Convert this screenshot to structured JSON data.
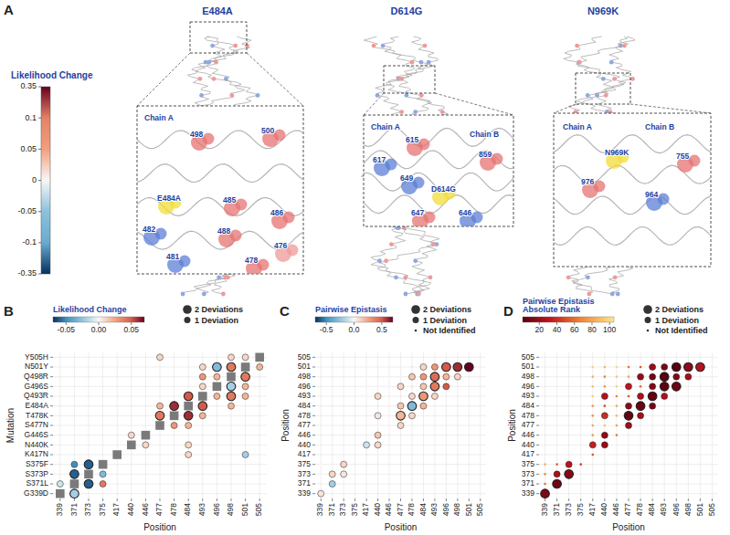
{
  "chart_data": [
    {
      "panel": "A",
      "type": "structure",
      "structures": [
        {
          "title": "E484A",
          "labels": [
            "Chain A",
            "498",
            "500",
            "E484A",
            "485",
            "486",
            "482",
            "481",
            "488",
            "478",
            "476"
          ]
        },
        {
          "title": "D614G",
          "labels": [
            "Chain A",
            "615",
            "617",
            "649",
            "D614G",
            "Chain B",
            "859",
            "647",
            "646"
          ]
        },
        {
          "title": "N969K",
          "labels": [
            "Chain A",
            "Chain B",
            "N969K",
            "755",
            "976",
            "964"
          ]
        }
      ],
      "colorbar": {
        "title": "Likelihood Change",
        "range": [
          -0.35,
          0.35
        ],
        "ticks": [
          0.35,
          0.1,
          0.05,
          0,
          -0.05,
          -0.1,
          -0.35
        ]
      }
    },
    {
      "panel": "B",
      "type": "scatter",
      "grid": true,
      "x_label": "Position",
      "y_label": "Mutation",
      "x_categories": [
        339,
        371,
        373,
        375,
        417,
        440,
        446,
        477,
        478,
        484,
        493,
        496,
        498,
        501,
        505
      ],
      "y_categories": [
        "G339D",
        "S371L",
        "S373P",
        "S375F",
        "K417N",
        "N440K",
        "G446S",
        "S477N",
        "T478K",
        "E484A",
        "Q493R",
        "G496S",
        "Q498R",
        "N501Y",
        "Y505H"
      ],
      "points": {
        "x": [
          371,
          339,
          373,
          375,
          371,
          375,
          371,
          373,
          484,
          501,
          446,
          484,
          440,
          478,
          484,
          477,
          484,
          493,
          477,
          478,
          493,
          498,
          484,
          496,
          498,
          501,
          493,
          498,
          501,
          493,
          496,
          501,
          493,
          496,
          498,
          505,
          477,
          498,
          501
        ],
        "y": [
          "G339D",
          "S371L",
          "S371L",
          "S371L",
          "S373P",
          "S373P",
          "S375F",
          "S375F",
          "K417N",
          "K417N",
          "N440K",
          "N440K",
          "G446S",
          "S477N",
          "S477N",
          "T478K",
          "T478K",
          "T478K",
          "E484A",
          "E484A",
          "E484A",
          "E484A",
          "Q493R",
          "Q493R",
          "Q493R",
          "Q493R",
          "G496S",
          "G496S",
          "G496S",
          "Q498R",
          "Q498R",
          "Q498R",
          "N501Y",
          "N501Y",
          "N501Y",
          "N501Y",
          "Y505H",
          "Y505H",
          "Y505H"
        ],
        "values": [
          -0.02,
          -0.01,
          -0.06,
          0.04,
          -0.06,
          -0.03,
          -0.05,
          -0.06,
          0.01,
          -0.02,
          0.01,
          0.01,
          0.01,
          0.03,
          0.02,
          0.04,
          0.06,
          0.02,
          0.02,
          0.06,
          0.05,
          0.02,
          0.05,
          0.02,
          0.04,
          0.02,
          0.01,
          -0.02,
          0.02,
          0.03,
          0.02,
          0.04,
          0.01,
          -0.03,
          0.04,
          0.02,
          0.01,
          0.01,
          0.01
        ],
        "deviations": [
          2,
          1,
          2,
          1,
          2,
          1,
          1,
          2,
          1,
          1,
          1,
          1,
          1,
          1,
          1,
          2,
          2,
          1,
          1,
          2,
          2,
          1,
          2,
          1,
          2,
          1,
          1,
          2,
          1,
          1,
          1,
          2,
          1,
          2,
          2,
          1,
          1,
          1,
          1
        ]
      },
      "colorbar": {
        "title": "Likelihood Change",
        "range": [
          -0.07,
          0.07
        ],
        "ticks": [
          -0.05,
          {
            "value": 0,
            "label": "0.00"
          },
          0.05
        ]
      },
      "size_legend": {
        "values": [
          2,
          1
        ],
        "labels": [
          "2 Deviations",
          "1 Deviation"
        ]
      }
    },
    {
      "panel": "C",
      "type": "scatter",
      "grid": true,
      "x_label": "Position",
      "y_label": "Position",
      "categories": [
        339,
        371,
        373,
        375,
        417,
        440,
        446,
        477,
        478,
        484,
        493,
        496,
        498,
        501,
        505
      ],
      "points": {
        "x": [
          339,
          339,
          371,
          339,
          371,
          373,
          339,
          371,
          373,
          375,
          417,
          417,
          440,
          417,
          440,
          446,
          417,
          440,
          446,
          477,
          417,
          440,
          446,
          477,
          478,
          417,
          440,
          446,
          477,
          478,
          484,
          417,
          440,
          446,
          477,
          478,
          484,
          493,
          417,
          440,
          446,
          477,
          478,
          484,
          493,
          496,
          417,
          440,
          446,
          477,
          478,
          484,
          493,
          496,
          498,
          417,
          440,
          446,
          477,
          478,
          484,
          493,
          496,
          498,
          501
        ],
        "y": [
          339,
          371,
          371,
          373,
          373,
          373,
          375,
          375,
          375,
          375,
          417,
          440,
          440,
          446,
          446,
          446,
          477,
          477,
          477,
          477,
          478,
          478,
          478,
          478,
          478,
          484,
          484,
          484,
          484,
          484,
          484,
          493,
          493,
          493,
          493,
          493,
          493,
          493,
          496,
          496,
          496,
          496,
          496,
          496,
          496,
          496,
          498,
          498,
          498,
          498,
          498,
          498,
          498,
          498,
          498,
          501,
          501,
          501,
          501,
          501,
          501,
          501,
          501,
          501,
          501
        ],
        "values": [
          0.05,
          0.02,
          -0.2,
          0.01,
          0.1,
          0.05,
          0,
          0.02,
          0.1,
          0.03,
          0.05,
          -0.1,
          0.1,
          0.02,
          0.15,
          0.03,
          0.02,
          0,
          0.02,
          0.1,
          0.03,
          0.05,
          0.01,
          0.2,
          0.1,
          0.02,
          -0.05,
          0.02,
          0.15,
          -0.3,
          0.2,
          0,
          0.1,
          0.03,
          0.05,
          0.1,
          0.3,
          0.1,
          0.01,
          0.02,
          0,
          0.1,
          0.05,
          0.15,
          0.4,
          0.5,
          0.02,
          0.03,
          0.01,
          0.02,
          0.15,
          0.3,
          0.45,
          0.2,
          0.1,
          0.01,
          0.02,
          0.01,
          0.03,
          0.05,
          0.1,
          0.3,
          0.5,
          0.6,
          0.7
        ],
        "deviations": [
          1,
          0,
          1,
          0,
          1,
          1,
          0,
          0,
          1,
          0,
          0,
          1,
          1,
          0,
          1,
          0,
          0,
          0,
          0,
          1,
          0,
          1,
          0,
          2,
          1,
          0,
          0,
          0,
          1,
          2,
          1,
          0,
          1,
          0,
          0,
          1,
          2,
          1,
          0,
          0,
          0,
          1,
          0,
          1,
          2,
          1,
          0,
          0,
          0,
          0,
          1,
          1,
          2,
          1,
          1,
          0,
          0,
          0,
          0,
          0,
          1,
          1,
          2,
          2,
          2
        ]
      },
      "colorbar": {
        "title": "Pairwise Epistasis",
        "range": [
          -0.7,
          0.7
        ],
        "ticks": [
          -0.5,
          {
            "value": 0,
            "label": "0.0"
          },
          0.5
        ]
      },
      "size_legend": {
        "values": [
          2,
          1,
          0
        ],
        "labels": [
          "2 Deviations",
          "1 Deviation",
          "Not Identified"
        ]
      }
    },
    {
      "panel": "D",
      "type": "scatter",
      "grid": true,
      "x_label": "Position",
      "y_label": "Position",
      "categories": [
        339,
        371,
        373,
        375,
        417,
        440,
        446,
        477,
        478,
        484,
        493,
        496,
        498,
        501,
        505
      ],
      "points": {
        "x": [
          339,
          339,
          371,
          339,
          371,
          373,
          339,
          371,
          373,
          375,
          417,
          417,
          440,
          417,
          440,
          446,
          417,
          440,
          446,
          477,
          417,
          440,
          446,
          477,
          478,
          417,
          440,
          446,
          477,
          478,
          484,
          417,
          440,
          446,
          477,
          478,
          484,
          493,
          417,
          440,
          446,
          477,
          478,
          484,
          493,
          496,
          417,
          440,
          446,
          477,
          478,
          484,
          493,
          496,
          498,
          417,
          440,
          446,
          477,
          478,
          484,
          493,
          496,
          498,
          501
        ],
        "y": [
          339,
          371,
          371,
          373,
          373,
          373,
          375,
          375,
          375,
          375,
          417,
          440,
          440,
          446,
          446,
          446,
          477,
          477,
          477,
          477,
          478,
          478,
          478,
          478,
          478,
          484,
          484,
          484,
          484,
          484,
          484,
          493,
          493,
          493,
          493,
          493,
          493,
          493,
          496,
          496,
          496,
          496,
          496,
          496,
          496,
          496,
          498,
          498,
          498,
          498,
          498,
          498,
          498,
          498,
          498,
          501,
          501,
          501,
          501,
          501,
          501,
          501,
          501,
          501,
          501
        ],
        "values": [
          12,
          60,
          8,
          70,
          25,
          15,
          85,
          55,
          30,
          45,
          50,
          35,
          20,
          75,
          18,
          65,
          80,
          90,
          78,
          22,
          72,
          40,
          88,
          5,
          24,
          76,
          48,
          82,
          16,
          6,
          10,
          95,
          28,
          68,
          52,
          26,
          4,
          27,
          92,
          74,
          98,
          32,
          58,
          14,
          3,
          7,
          84,
          66,
          94,
          79,
          19,
          9,
          2,
          13,
          23,
          96,
          86,
          99,
          62,
          54,
          21,
          11,
          1,
          17,
          29
        ],
        "deviations": [
          2,
          0,
          2,
          0,
          1,
          2,
          0,
          0,
          1,
          0,
          0,
          1,
          1,
          0,
          1,
          0,
          0,
          0,
          0,
          1,
          0,
          1,
          0,
          2,
          1,
          0,
          0,
          0,
          1,
          2,
          1,
          0,
          1,
          0,
          0,
          1,
          2,
          1,
          0,
          0,
          0,
          1,
          0,
          1,
          2,
          2,
          0,
          0,
          0,
          0,
          1,
          1,
          2,
          1,
          1,
          0,
          0,
          0,
          0,
          0,
          1,
          1,
          2,
          2,
          2
        ]
      },
      "colorbar": {
        "title": "Pairwise Epistasis Absolute Rank",
        "range": [
          1,
          105
        ],
        "ticks": [
          20,
          40,
          60,
          80,
          100
        ]
      },
      "size_legend": {
        "values": [
          2,
          1,
          0
        ],
        "labels": [
          "2 Deviations",
          "1 Deviation",
          "Not Identified"
        ]
      }
    }
  ]
}
